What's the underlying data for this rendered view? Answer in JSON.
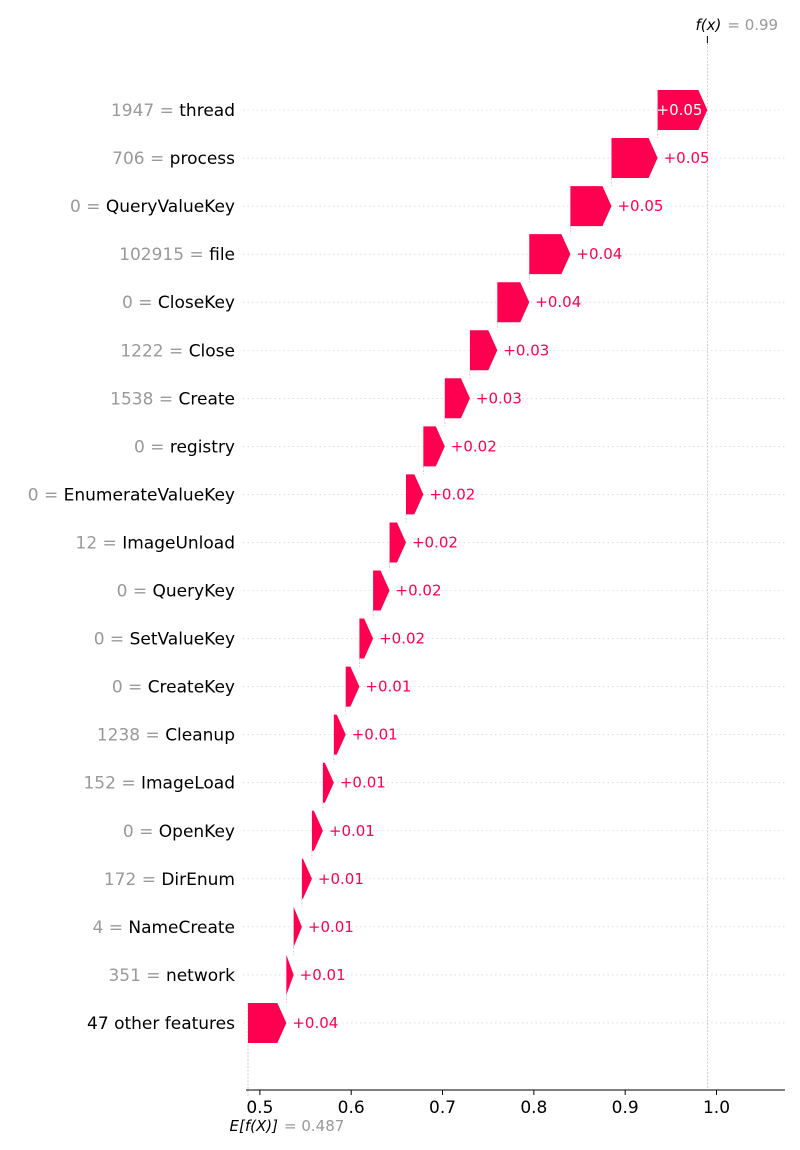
{
  "chart_data": {
    "type": "waterfall",
    "fx": {
      "label": "f(x)",
      "value_text": "= 0.99",
      "value": 0.99
    },
    "base": {
      "label": "E[f(X)]",
      "value_text": "= 0.487",
      "value": 0.487
    },
    "xlim": [
      0.487,
      1.075
    ],
    "x_ticks": [
      {
        "value": 0.5,
        "label": "0.5"
      },
      {
        "value": 0.6,
        "label": "0.6"
      },
      {
        "value": 0.7,
        "label": "0.7"
      },
      {
        "value": 0.8,
        "label": "0.8"
      },
      {
        "value": 0.9,
        "label": "0.9"
      },
      {
        "value": 1.0,
        "label": "1.0"
      }
    ],
    "features": [
      {
        "value": "1947",
        "name": "thread",
        "start": 0.9355,
        "end": 0.99,
        "label": "+0.05"
      },
      {
        "value": "706",
        "name": "process",
        "start": 0.885,
        "end": 0.9355,
        "label": "+0.05"
      },
      {
        "value": "0",
        "name": "QueryValueKey",
        "start": 0.84,
        "end": 0.885,
        "label": "+0.05"
      },
      {
        "value": "102915",
        "name": "file",
        "start": 0.795,
        "end": 0.84,
        "label": "+0.04"
      },
      {
        "value": "0",
        "name": "CloseKey",
        "start": 0.76,
        "end": 0.795,
        "label": "+0.04"
      },
      {
        "value": "1222",
        "name": "Close",
        "start": 0.73,
        "end": 0.76,
        "label": "+0.03"
      },
      {
        "value": "1538",
        "name": "Create",
        "start": 0.7025,
        "end": 0.73,
        "label": "+0.03"
      },
      {
        "value": "0",
        "name": "registry",
        "start": 0.679,
        "end": 0.7025,
        "label": "+0.02"
      },
      {
        "value": "0",
        "name": "EnumerateValueKey",
        "start": 0.66,
        "end": 0.679,
        "label": "+0.02"
      },
      {
        "value": "12",
        "name": "ImageUnload",
        "start": 0.642,
        "end": 0.66,
        "label": "+0.02"
      },
      {
        "value": "0",
        "name": "QueryKey",
        "start": 0.624,
        "end": 0.642,
        "label": "+0.02"
      },
      {
        "value": "0",
        "name": "SetValueKey",
        "start": 0.609,
        "end": 0.624,
        "label": "+0.02"
      },
      {
        "value": "0",
        "name": "CreateKey",
        "start": 0.594,
        "end": 0.609,
        "label": "+0.01"
      },
      {
        "value": "1238",
        "name": "Cleanup",
        "start": 0.581,
        "end": 0.594,
        "label": "+0.01"
      },
      {
        "value": "152",
        "name": "ImageLoad",
        "start": 0.569,
        "end": 0.581,
        "label": "+0.01"
      },
      {
        "value": "0",
        "name": "OpenKey",
        "start": 0.557,
        "end": 0.569,
        "label": "+0.01"
      },
      {
        "value": "172",
        "name": "DirEnum",
        "start": 0.546,
        "end": 0.557,
        "label": "+0.01"
      },
      {
        "value": "4",
        "name": "NameCreate",
        "start": 0.537,
        "end": 0.546,
        "label": "+0.01"
      },
      {
        "value": "351",
        "name": "network",
        "start": 0.529,
        "end": 0.537,
        "label": "+0.01"
      },
      {
        "value": "",
        "name": "47 other features",
        "start": 0.487,
        "end": 0.529,
        "label": "+0.04"
      }
    ],
    "colors": {
      "positive": "#ff0051",
      "label_value": "#999999",
      "label_name": "#000000",
      "grid": "#cccccc",
      "axis": "#000000"
    }
  }
}
